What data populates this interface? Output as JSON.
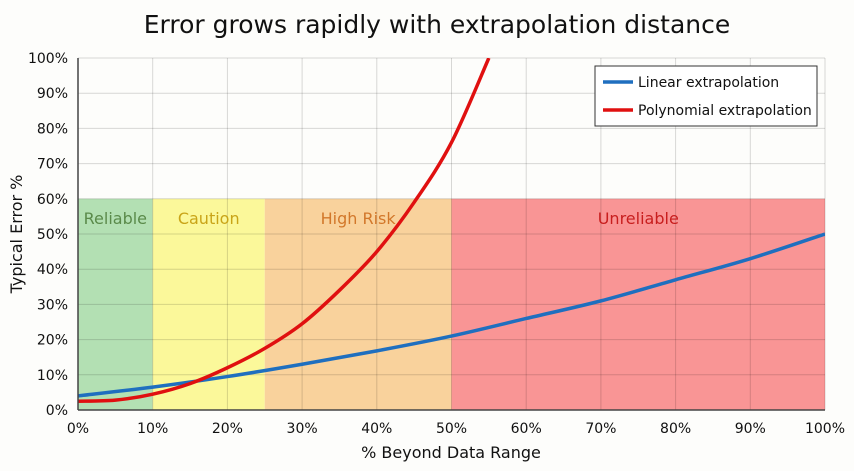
{
  "chart_data": {
    "type": "line",
    "title": "Error grows rapidly with extrapolation distance",
    "xlabel": "% Beyond Data Range",
    "ylabel": "Typical Error %",
    "xlim": [
      0,
      100
    ],
    "ylim": [
      0,
      100
    ],
    "x_ticks": [
      "0%",
      "10%",
      "20%",
      "30%",
      "40%",
      "50%",
      "60%",
      "70%",
      "80%",
      "90%",
      "100%"
    ],
    "y_ticks": [
      "0%",
      "10%",
      "20%",
      "30%",
      "40%",
      "50%",
      "60%",
      "70%",
      "80%",
      "90%",
      "100%"
    ],
    "grid": true,
    "legend_position": "top-right",
    "zones": [
      {
        "label": "Reliable",
        "from": 0,
        "to": 10,
        "ymax": 60,
        "fill": "#b3e0b3",
        "text_color": "#5a8a4a"
      },
      {
        "label": "Caution",
        "from": 10,
        "to": 25,
        "ymax": 60,
        "fill": "#fbf89a",
        "text_color": "#c9a418"
      },
      {
        "label": "High Risk",
        "from": 25,
        "to": 50,
        "ymax": 60,
        "fill": "#f9d29c",
        "text_color": "#d2772a"
      },
      {
        "label": "Unreliable",
        "from": 50,
        "to": 100,
        "ymax": 60,
        "fill": "#f99595",
        "text_color": "#c81e1e"
      }
    ],
    "series": [
      {
        "name": "Linear extrapolation",
        "color": "#1f6fbf",
        "x": [
          0,
          10,
          20,
          30,
          40,
          50,
          60,
          70,
          80,
          90,
          100
        ],
        "y": [
          4,
          6.5,
          9.5,
          13,
          16.8,
          21,
          26,
          31,
          37,
          43,
          50
        ]
      },
      {
        "name": "Polynomial extrapolation",
        "color": "#e01010",
        "x": [
          0,
          5,
          10,
          15,
          20,
          25,
          30,
          35,
          40,
          45,
          50,
          55
        ],
        "y": [
          2.5,
          2.8,
          4.5,
          7.5,
          12,
          17.5,
          24.5,
          34,
          45,
          59,
          76,
          100
        ]
      }
    ]
  }
}
